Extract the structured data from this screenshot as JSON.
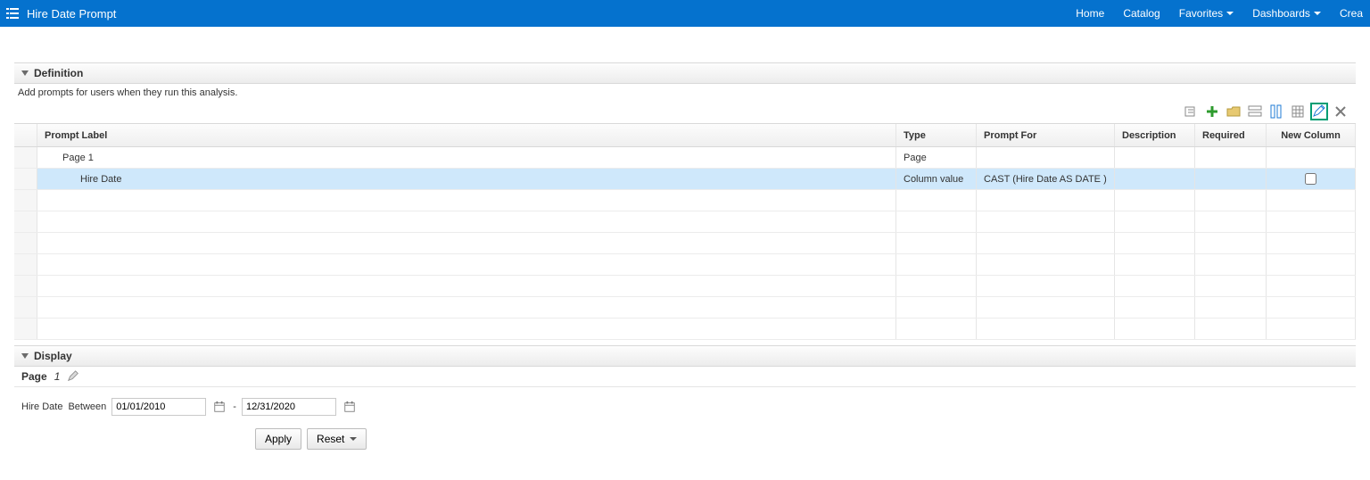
{
  "header": {
    "title": "Hire Date Prompt",
    "nav": {
      "home": "Home",
      "catalog": "Catalog",
      "favorites": "Favorites",
      "dashboards": "Dashboards",
      "create": "Crea"
    }
  },
  "definition": {
    "section_title": "Definition",
    "hint": "Add prompts for users when they run this analysis.",
    "columns": {
      "label": "Prompt Label",
      "type": "Type",
      "for": "Prompt For",
      "desc": "Description",
      "req": "Required",
      "newcol": "New Column"
    },
    "rows": [
      {
        "label": "Page 1",
        "type": "Page",
        "for": "",
        "desc": "",
        "req": "",
        "newcol": null,
        "indent": 1,
        "selected": false
      },
      {
        "label": "Hire Date",
        "type": "Column value",
        "for": "CAST (Hire Date AS DATE )",
        "desc": "",
        "req": "",
        "newcol": false,
        "indent": 2,
        "selected": true
      }
    ],
    "empty_row_count": 7
  },
  "display": {
    "section_title": "Display",
    "page_label": "Page",
    "page_number": "1",
    "prompt_label": "Hire Date",
    "operator": "Between",
    "date_from": "01/01/2010",
    "date_sep": "-",
    "date_to": "12/31/2020",
    "apply_label": "Apply",
    "reset_label": "Reset"
  },
  "colors": {
    "topbar": "#0572ce",
    "selected_row": "#cfe8fb",
    "edit_highlight": "#009e73"
  }
}
